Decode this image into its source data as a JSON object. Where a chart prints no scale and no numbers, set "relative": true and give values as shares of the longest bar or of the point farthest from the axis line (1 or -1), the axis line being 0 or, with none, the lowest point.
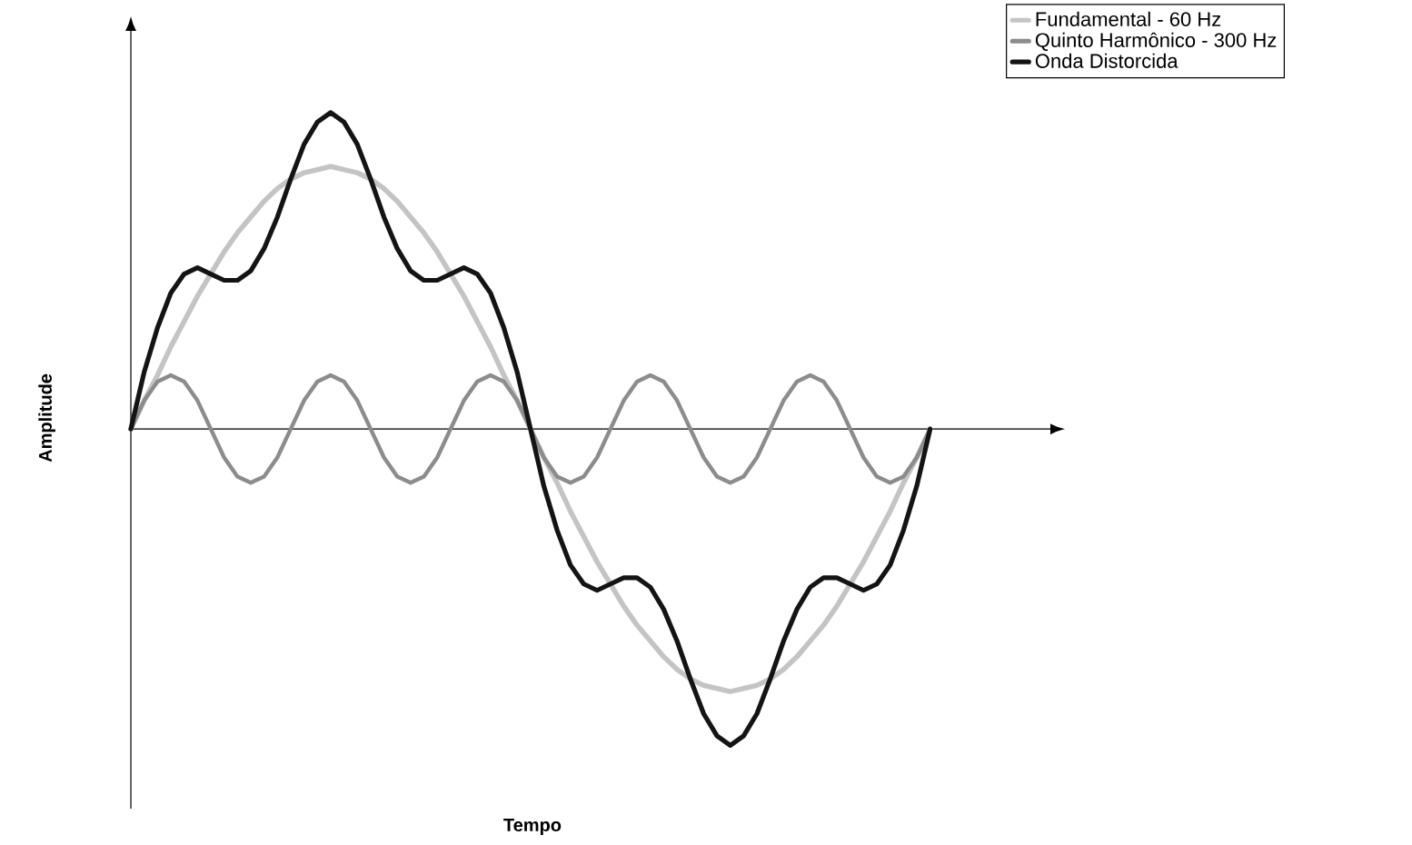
{
  "chart_data": {
    "type": "line",
    "relative": true,
    "xlabel": "Tempo",
    "ylabel": "Amplitude",
    "legend": "top right",
    "categories": [
      null,
      null,
      null,
      null,
      null,
      null,
      null,
      null,
      null,
      null,
      null,
      null,
      null,
      null,
      null,
      null,
      null,
      null,
      null,
      null,
      null,
      null,
      null,
      null,
      null,
      null,
      null,
      null,
      null,
      null,
      null,
      null,
      null,
      null,
      null,
      null,
      null,
      null,
      null,
      null,
      null,
      null,
      null,
      null,
      null,
      null,
      null,
      null,
      null,
      null,
      null,
      null,
      null,
      null,
      null,
      null,
      null,
      null,
      null,
      null,
      null
    ],
    "series": [
      {
        "name": "Fundamental - 60 Hz",
        "color": "#c4c4c4",
        "values": [
          0,
          0.09,
          0.17,
          0.26,
          0.34,
          0.42,
          0.49,
          0.56,
          0.62,
          0.67,
          0.72,
          0.76,
          0.79,
          0.81,
          0.82,
          0.83,
          0.82,
          0.81,
          0.79,
          0.76,
          0.72,
          0.67,
          0.62,
          0.56,
          0.49,
          0.42,
          0.34,
          0.26,
          0.17,
          0.09,
          0,
          -0.09,
          -0.17,
          -0.26,
          -0.34,
          -0.42,
          -0.49,
          -0.56,
          -0.62,
          -0.67,
          -0.72,
          -0.76,
          -0.79,
          -0.81,
          -0.82,
          -0.83,
          -0.82,
          -0.81,
          -0.79,
          -0.76,
          -0.72,
          -0.67,
          -0.62,
          -0.56,
          -0.49,
          -0.42,
          -0.34,
          -0.26,
          -0.17,
          -0.09,
          0
        ]
      },
      {
        "name": "Quinto Harmônico - 300 Hz",
        "color": "#8c8c8c",
        "values": [
          0,
          0.09,
          0.15,
          0.17,
          0.15,
          0.09,
          0,
          -0.09,
          -0.15,
          -0.17,
          -0.15,
          -0.09,
          0,
          0.09,
          0.15,
          0.17,
          0.15,
          0.09,
          0,
          -0.09,
          -0.15,
          -0.17,
          -0.15,
          -0.09,
          0,
          0.09,
          0.15,
          0.17,
          0.15,
          0.09,
          0,
          -0.09,
          -0.15,
          -0.17,
          -0.15,
          -0.09,
          0,
          0.09,
          0.15,
          0.17,
          0.15,
          0.09,
          0,
          -0.09,
          -0.15,
          -0.17,
          -0.15,
          -0.09,
          0,
          0.09,
          0.15,
          0.17,
          0.15,
          0.09,
          0,
          -0.09,
          -0.15,
          -0.17,
          -0.15,
          -0.09,
          0
        ]
      },
      {
        "name": "Onda Distorcida",
        "color": "#141414",
        "values": [
          0,
          0.18,
          0.32,
          0.43,
          0.49,
          0.51,
          0.49,
          0.47,
          0.47,
          0.5,
          0.57,
          0.67,
          0.79,
          0.9,
          0.97,
          1,
          0.97,
          0.9,
          0.79,
          0.67,
          0.57,
          0.5,
          0.47,
          0.47,
          0.49,
          0.51,
          0.49,
          0.43,
          0.32,
          0.18,
          0,
          -0.18,
          -0.32,
          -0.43,
          -0.49,
          -0.51,
          -0.49,
          -0.47,
          -0.47,
          -0.5,
          -0.57,
          -0.67,
          -0.79,
          -0.9,
          -0.97,
          -1,
          -0.97,
          -0.9,
          -0.79,
          -0.67,
          -0.57,
          -0.5,
          -0.47,
          -0.47,
          -0.49,
          -0.51,
          -0.49,
          -0.43,
          -0.32,
          -0.18,
          0
        ]
      }
    ]
  }
}
